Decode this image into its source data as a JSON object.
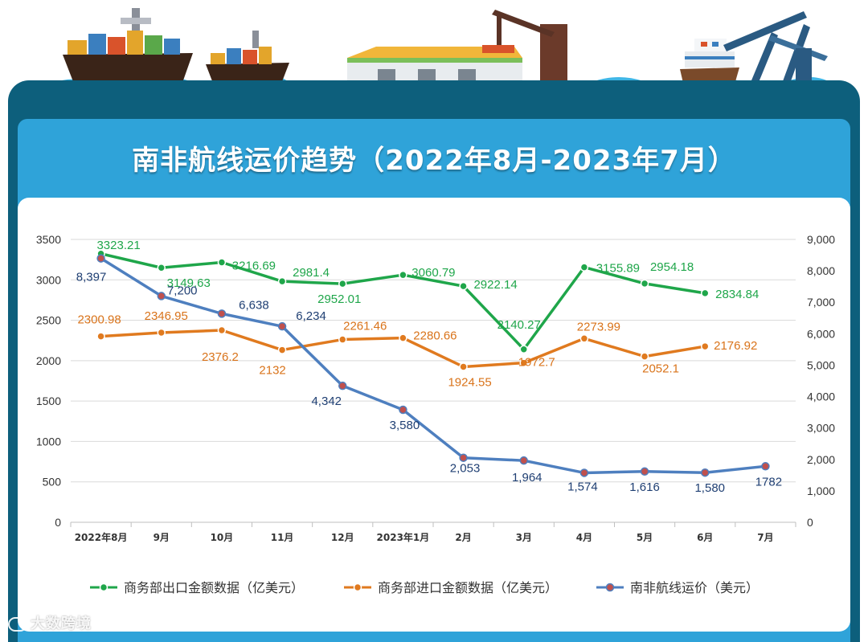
{
  "title": "南非航线运价趋势（2022年8月-2023年7月）",
  "watermark": "大数跨境",
  "chart_data": {
    "type": "line",
    "categories": [
      "2022年8月",
      "9月",
      "10月",
      "11月",
      "12月",
      "2023年1月",
      "2月",
      "3月",
      "4月",
      "5月",
      "6月",
      "7月"
    ],
    "left_axis": {
      "ylim": [
        0,
        3500
      ],
      "ticks": [
        "0",
        "500",
        "1000",
        "1500",
        "2000",
        "2500",
        "3000",
        "3500"
      ]
    },
    "right_axis": {
      "ylim": [
        0,
        9000
      ],
      "ticks": [
        "0",
        "1,000",
        "2,000",
        "3,000",
        "4,000",
        "5,000",
        "6,000",
        "7,000",
        "8,000",
        "9,000"
      ]
    },
    "series": [
      {
        "name": "商务部出口金额数据（亿美元）",
        "axis": "left",
        "color": "#1fa64a",
        "label_color": "#1fa64a",
        "values": [
          3323.21,
          3149.63,
          3216.69,
          2981.4,
          2952.01,
          3060.79,
          2922.14,
          2140.27,
          3155.89,
          2954.18,
          2834.84,
          null
        ],
        "labels": [
          "3323.21",
          "3149.63",
          "3216.69",
          "2981.4",
          "2952.01",
          "3060.79",
          "2922.14",
          "2140.27",
          "3155.89",
          "2954.18",
          "2834.84",
          ""
        ]
      },
      {
        "name": "商务部进口金额数据（亿美元）",
        "axis": "left",
        "color": "#e07a1f",
        "label_color": "#d9731a",
        "values": [
          2300.98,
          2346.95,
          2376.2,
          2132,
          2261.46,
          2280.66,
          1924.55,
          1972.7,
          2273.99,
          2052.1,
          2176.92,
          null
        ],
        "labels": [
          "2300.98",
          "2346.95",
          "2376.2",
          "2132",
          "2261.46",
          "2280.66",
          "1924.55",
          "1972.7",
          "2273.99",
          "2052.1",
          "2176.92",
          ""
        ]
      },
      {
        "name": "南非航线运价（美元）",
        "axis": "right",
        "color": "#4e7fbf",
        "label_color": "#1f3f73",
        "values": [
          8397,
          7200,
          6638,
          6234,
          4342,
          3580,
          2053,
          1964,
          1574,
          1616,
          1580,
          1782
        ],
        "labels": [
          "8,397",
          "7,200",
          "6,638",
          "6,234",
          "4,342",
          "3,580",
          "2,053",
          "1,964",
          "1,574",
          "1,616",
          "1,580",
          "1782"
        ]
      }
    ]
  }
}
